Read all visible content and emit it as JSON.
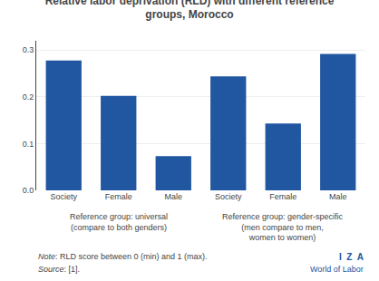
{
  "chart_data": {
    "type": "bar",
    "title": "Relative labor deprivation (RLD) with different reference\ngroups, Morocco",
    "categories": [
      "Society",
      "Female",
      "Male",
      "Society",
      "Female",
      "Male"
    ],
    "values": [
      0.278,
      0.202,
      0.073,
      0.244,
      0.143,
      0.292
    ],
    "color": "#2156A0",
    "ylim": [
      0,
      0.32
    ],
    "yticks": [
      {
        "value": 0,
        "label": "0.0"
      },
      0.1,
      0.2,
      0.3
    ],
    "grid": true,
    "annotations": [
      "Reference group: universal\n(compare to both genders)",
      "Reference group: gender-specific\n(men compare to men,\nwomen to women)",
      "Note: RLD score between 0 (min) and 1 (max).",
      "Source: [1].",
      "I  Z  A",
      "World of Labor"
    ]
  }
}
